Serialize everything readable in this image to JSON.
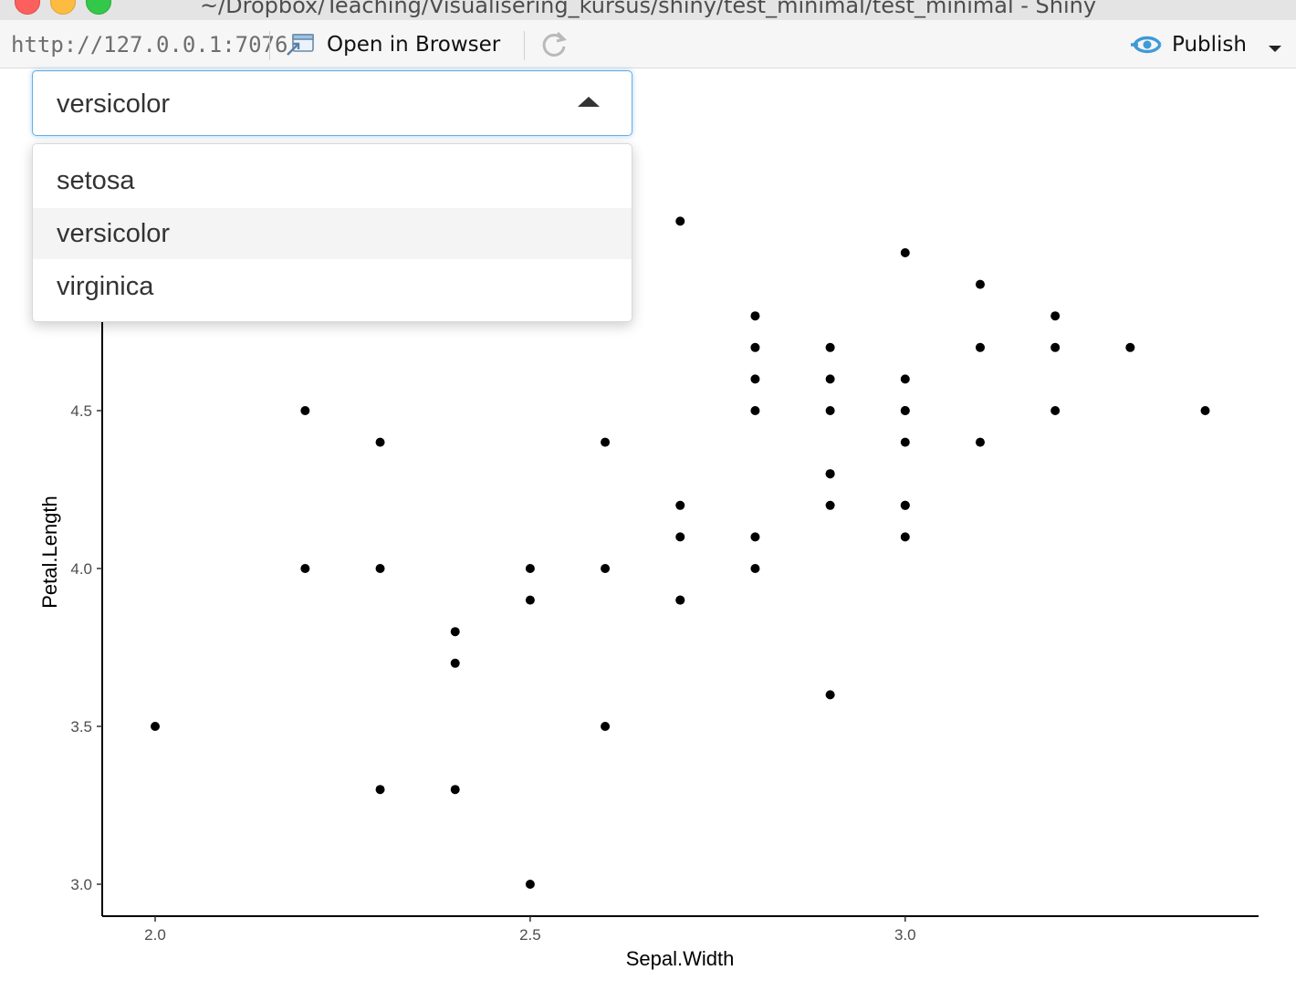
{
  "window": {
    "title": "~/Dropbox/Teaching/Visualisering_kursus/shiny/test_minimal/test_minimal - Shiny"
  },
  "toolbar": {
    "url": "http://127.0.0.1:7076",
    "open_in_browser_label": "Open in Browser",
    "publish_label": "Publish",
    "icons": {
      "open": "open-in-browser-icon",
      "refresh": "refresh-icon",
      "publish": "publish-icon",
      "menu": "chevron-down-icon"
    }
  },
  "select": {
    "selected": "versicolor",
    "open": true,
    "options": [
      "setosa",
      "versicolor",
      "virginica"
    ],
    "highlighted_index": 1,
    "accent": "#66afe9"
  },
  "chart_data": {
    "type": "scatter",
    "title": "",
    "xlabel": "Sepal.Width",
    "ylabel": "Petal.Length",
    "xlim": [
      1.93,
      3.47
    ],
    "ylim": [
      2.9,
      5.1
    ],
    "xticks": [
      "2.0",
      "2.5",
      "3.0"
    ],
    "yticks": [
      "3.0",
      "3.5",
      "4.0",
      "4.5"
    ],
    "grid": false,
    "series": [
      {
        "color": "#000000",
        "x": [
          3.2,
          3.2,
          3.1,
          2.3,
          2.8,
          2.8,
          3.3,
          2.4,
          2.9,
          2.7,
          2.0,
          3.0,
          2.2,
          2.9,
          2.9,
          3.1,
          3.0,
          2.7,
          2.2,
          2.5,
          3.2,
          2.8,
          2.5,
          2.8,
          2.9,
          3.0,
          2.8,
          3.0,
          2.9,
          2.6,
          2.4,
          2.4,
          2.7,
          2.7,
          3.0,
          3.4,
          3.1,
          2.3,
          3.0,
          2.5,
          2.6,
          3.0,
          2.6,
          2.3,
          2.7,
          3.0,
          2.9,
          2.9,
          2.5,
          2.8
        ],
        "y": [
          4.7,
          4.5,
          4.9,
          4.0,
          4.6,
          4.5,
          4.7,
          3.3,
          4.6,
          3.9,
          3.5,
          4.2,
          4.0,
          4.7,
          3.6,
          4.4,
          4.5,
          4.1,
          4.5,
          3.9,
          4.8,
          4.0,
          4.9,
          4.7,
          4.3,
          4.4,
          4.8,
          5.0,
          4.5,
          3.5,
          3.8,
          3.7,
          3.9,
          5.1,
          4.5,
          4.5,
          4.7,
          4.4,
          4.1,
          4.0,
          4.4,
          4.6,
          4.0,
          3.3,
          4.2,
          4.2,
          4.2,
          4.3,
          3.0,
          4.1
        ]
      }
    ]
  }
}
